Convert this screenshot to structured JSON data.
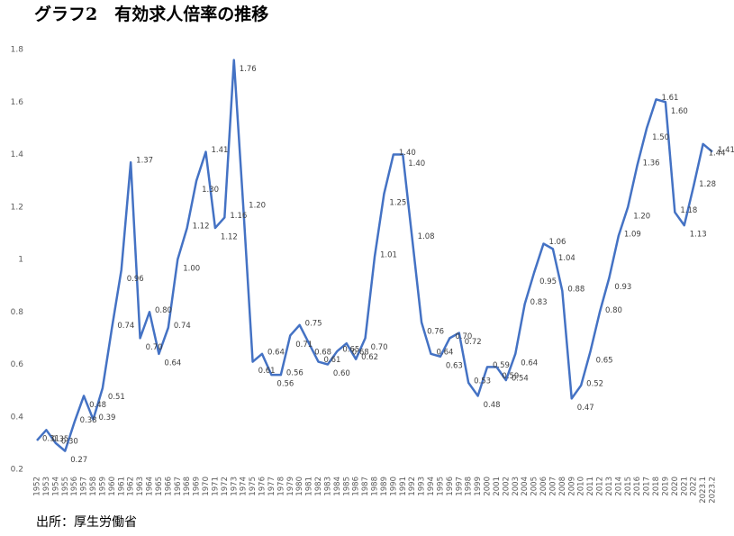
{
  "chart_data": {
    "type": "line",
    "title": "グラフ2　有効求人倍率の推移",
    "source": "出所：厚生労働省",
    "categories": [
      "1952",
      "1953",
      "1954",
      "1955",
      "1956",
      "1957",
      "1958",
      "1959",
      "1960",
      "1961",
      "1962",
      "1963",
      "1964",
      "1965",
      "1966",
      "1967",
      "1968",
      "1969",
      "1970",
      "1971",
      "1972",
      "1973",
      "1974",
      "1975",
      "1976",
      "1977",
      "1978",
      "1979",
      "1980",
      "1981",
      "1982",
      "1983",
      "1984",
      "1985",
      "1986",
      "1987",
      "1988",
      "1989",
      "1990",
      "1991",
      "1992",
      "1993",
      "1994",
      "1995",
      "1996",
      "1997",
      "1998",
      "1999",
      "2000",
      "2001",
      "2002",
      "2003",
      "2004",
      "2005",
      "2006",
      "2007",
      "2008",
      "2009",
      "2010",
      "2011",
      "2012",
      "2013",
      "2014",
      "2015",
      "2016",
      "2017",
      "2018",
      "2019",
      "2020",
      "2021",
      "2022",
      "2023.1",
      "2023.2"
    ],
    "series": [
      {
        "color": "#4472c4",
        "values": [
          0.31,
          0.35,
          0.3,
          0.27,
          0.38,
          0.48,
          0.39,
          0.51,
          0.74,
          0.96,
          1.37,
          0.7,
          0.8,
          0.64,
          0.74,
          1.0,
          1.12,
          1.3,
          1.41,
          1.12,
          1.16,
          1.76,
          1.2,
          0.61,
          0.64,
          0.56,
          0.56,
          0.71,
          0.75,
          0.68,
          0.61,
          0.6,
          0.65,
          0.68,
          0.62,
          0.7,
          1.01,
          1.25,
          1.4,
          1.4,
          1.08,
          0.76,
          0.64,
          0.63,
          0.7,
          0.72,
          0.53,
          0.48,
          0.59,
          0.59,
          0.54,
          0.64,
          0.83,
          0.95,
          1.06,
          1.04,
          0.88,
          0.47,
          0.52,
          0.65,
          0.8,
          0.93,
          1.09,
          1.2,
          1.36,
          1.5,
          1.61,
          1.6,
          1.18,
          1.13,
          1.28,
          1.44,
          1.41
        ],
        "value_labels": [
          "0.31",
          "0.35",
          "0.30",
          "0.27",
          "0.38",
          "0.48",
          "0.39",
          "0.51",
          "0.74",
          "0.96",
          "1.37",
          "0.70",
          "0.80",
          "0.64",
          "0.74",
          "1.00",
          "1.12",
          "1.30",
          "1.41",
          "1.12",
          "1.16",
          "1.76",
          "1.20",
          "0.61",
          "0.64",
          "0.56",
          "0.56",
          "0.71",
          "0.75",
          "0.68",
          "0.61",
          "0.60",
          "0.65",
          "0.68",
          "0.62",
          "0.70",
          "1.01",
          "1.25",
          "1.40",
          "1.40",
          "1.08",
          "0.76",
          "0.64",
          "0.63",
          "0.70",
          "0.72",
          "0.53",
          "0.48",
          "0.59",
          "0.59",
          "0.54",
          "0.64",
          "0.83",
          "0.95",
          "1.06",
          "1.04",
          "0.88",
          "0.47",
          "0.52",
          "0.65",
          "0.80",
          "0.93",
          "1.09",
          "1.20",
          "1.36",
          "1.50",
          "1.61",
          "1.60",
          "1.18",
          "1.13",
          "1.28",
          "1.44",
          "1.41"
        ]
      }
    ],
    "ylim": [
      0.2,
      1.8
    ],
    "yticks": [
      0.2,
      0.4,
      0.6,
      0.8,
      1,
      1.2,
      1.4,
      1.6,
      1.8
    ]
  }
}
